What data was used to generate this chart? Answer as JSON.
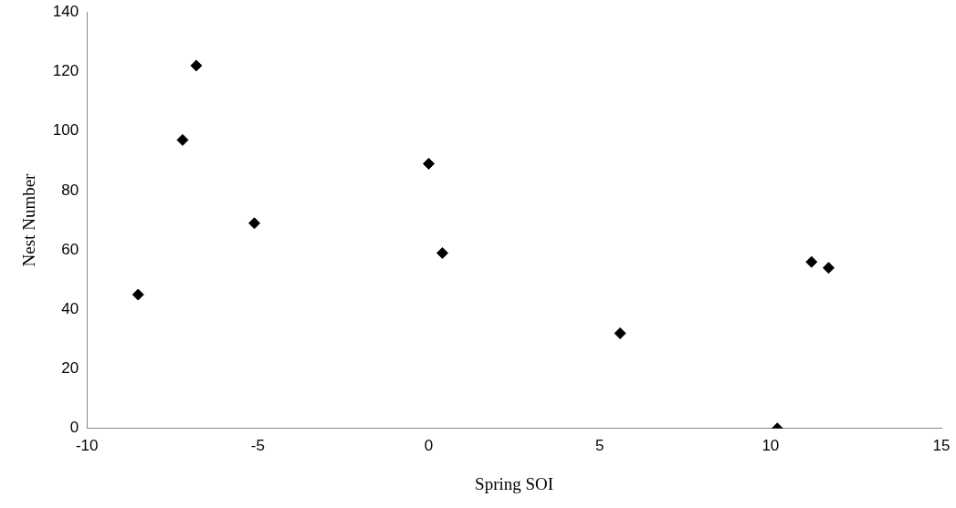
{
  "chart_data": {
    "type": "scatter",
    "xlabel": "Spring SOI",
    "ylabel": "Nest Number",
    "x": [
      -8.5,
      -7.2,
      -6.8,
      -5.1,
      0.0,
      0.4,
      5.6,
      10.2,
      11.2,
      11.7
    ],
    "values": [
      45,
      97,
      122,
      69,
      89,
      59,
      32,
      0,
      56,
      54
    ],
    "color": "#000000",
    "marker": "diamond",
    "xlim": [
      -10,
      15
    ],
    "xticks": [
      -10,
      -5,
      0,
      5,
      10,
      15
    ],
    "ylim": [
      0,
      140
    ],
    "yticks": [
      0,
      20,
      40,
      60,
      80,
      100,
      120,
      140
    ],
    "grid": false,
    "legend": false
  }
}
